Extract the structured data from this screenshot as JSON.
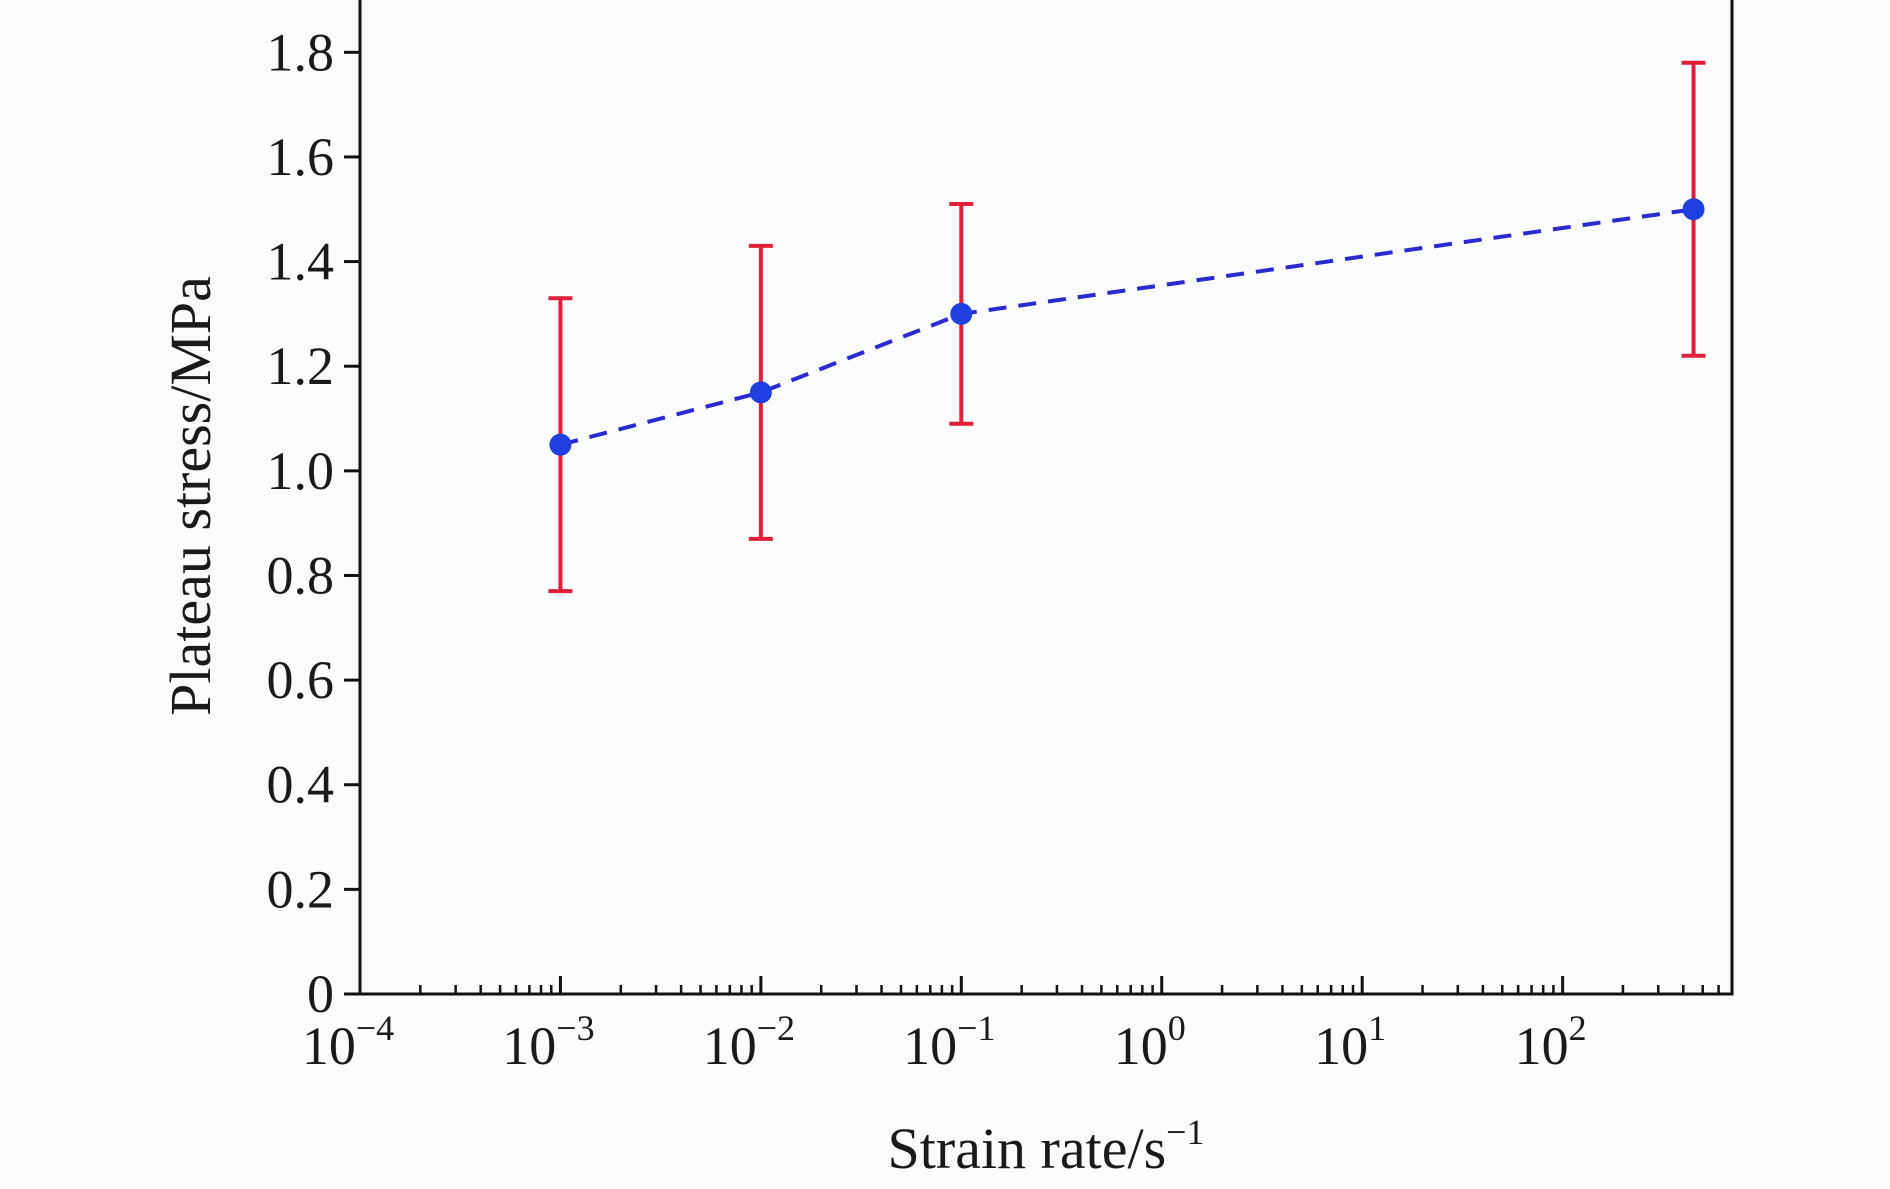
{
  "chart_data": {
    "type": "scatter",
    "title": "",
    "xlabel": "Strain rate/s",
    "xlabel_sup": "−1",
    "ylabel": "Plateau stress/MPa",
    "x_scale": "log",
    "xlim": [
      0.0001,
      700
    ],
    "ylim": [
      0,
      1.9
    ],
    "grid": false,
    "legend": "none",
    "x_ticks": [
      {
        "base": "10",
        "exp": "−4",
        "value": 0.0001
      },
      {
        "base": "10",
        "exp": "−3",
        "value": 0.001
      },
      {
        "base": "10",
        "exp": "−2",
        "value": 0.01
      },
      {
        "base": "10",
        "exp": "−1",
        "value": 0.1
      },
      {
        "base": "10",
        "exp": "0",
        "value": 1
      },
      {
        "base": "10",
        "exp": "1",
        "value": 10
      },
      {
        "base": "10",
        "exp": "2",
        "value": 100
      }
    ],
    "y_ticks": [
      {
        "label": "0",
        "value": 0
      },
      {
        "label": "0.2",
        "value": 0.2
      },
      {
        "label": "0.4",
        "value": 0.4
      },
      {
        "label": "0.6",
        "value": 0.6
      },
      {
        "label": "0.8",
        "value": 0.8
      },
      {
        "label": "1.0",
        "value": 1.0
      },
      {
        "label": "1.2",
        "value": 1.2
      },
      {
        "label": "1.4",
        "value": 1.4
      },
      {
        "label": "1.6",
        "value": 1.6
      },
      {
        "label": "1.8",
        "value": 1.8
      }
    ],
    "series": [
      {
        "x": [
          0.001,
          0.01,
          0.1,
          450
        ],
        "y": [
          1.05,
          1.15,
          1.3,
          1.5
        ],
        "y_err_low": [
          0.77,
          0.87,
          1.09,
          1.22
        ],
        "y_err_high": [
          1.33,
          1.43,
          1.51,
          1.78
        ],
        "line_style": "dashed"
      }
    ],
    "colors": {
      "line": "#2a2ad0",
      "marker": "#1f3fe0",
      "error_bar": "#e0203a",
      "axis": "#111111",
      "background": "#fafbfd"
    }
  }
}
